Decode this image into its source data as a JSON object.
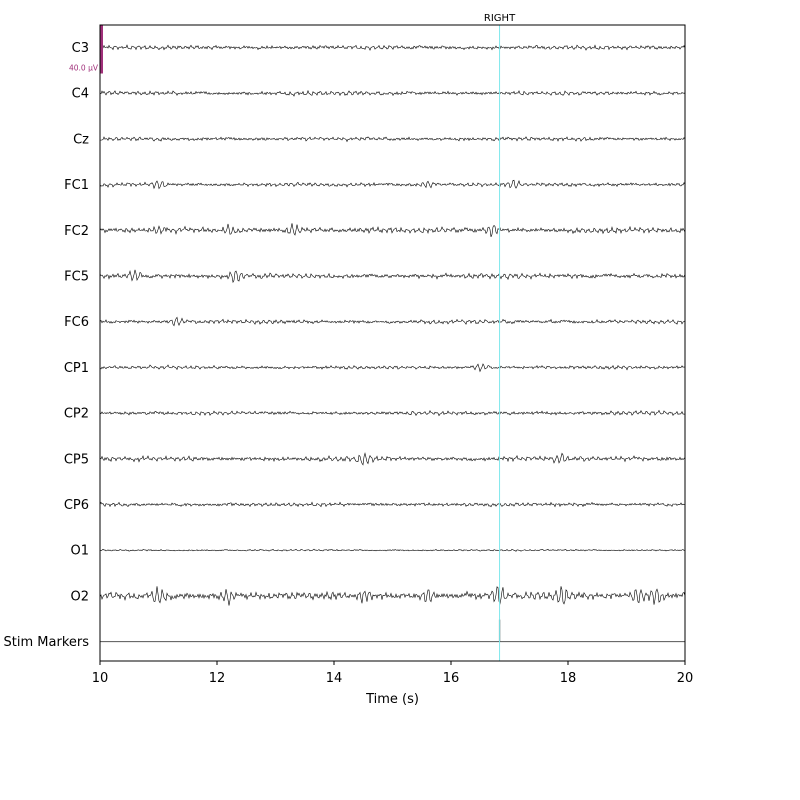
{
  "chart_data": {
    "type": "line",
    "subtype": "eeg-raw-traces",
    "x": {
      "label": "Time (s)",
      "range": [
        10,
        20
      ],
      "ticks": [
        10,
        12,
        14,
        16,
        18,
        20
      ]
    },
    "channels": [
      {
        "name": "C3",
        "amplitude": 0.6,
        "bursts": []
      },
      {
        "name": "C4",
        "amplitude": 0.6,
        "bursts": []
      },
      {
        "name": "Cz",
        "amplitude": 0.55,
        "bursts": []
      },
      {
        "name": "FC1",
        "amplitude": 0.55,
        "bursts": [
          11.0,
          15.6,
          17.1
        ]
      },
      {
        "name": "FC2",
        "amplitude": 0.8,
        "bursts": [
          11.0,
          12.2,
          13.3,
          16.7
        ]
      },
      {
        "name": "FC5",
        "amplitude": 0.75,
        "bursts": [
          10.6,
          12.3
        ]
      },
      {
        "name": "FC6",
        "amplitude": 0.6,
        "bursts": [
          11.3
        ]
      },
      {
        "name": "CP1",
        "amplitude": 0.5,
        "bursts": [
          16.5
        ]
      },
      {
        "name": "CP2",
        "amplitude": 0.55,
        "bursts": []
      },
      {
        "name": "CP5",
        "amplitude": 0.7,
        "bursts": [
          14.5,
          17.9
        ]
      },
      {
        "name": "CP6",
        "amplitude": 0.55,
        "bursts": []
      },
      {
        "name": "O1",
        "amplitude": 0.25,
        "bursts": []
      },
      {
        "name": "O2",
        "amplitude": 1.1,
        "bursts": [
          11.0,
          12.2,
          14.5,
          15.6,
          16.8,
          17.9,
          19.2,
          19.5
        ]
      }
    ],
    "stim_channel": {
      "name": "Stim Markers",
      "events": [
        16.83
      ]
    },
    "annotations": [
      {
        "label": "RIGHT",
        "time": 16.83,
        "color": "#7fe8ec"
      }
    ],
    "scale_bar": {
      "label": "40.0 µV",
      "channel": "C3",
      "color": "#a0307a"
    },
    "trace_color": "#000000",
    "stim_color": "#555555"
  }
}
